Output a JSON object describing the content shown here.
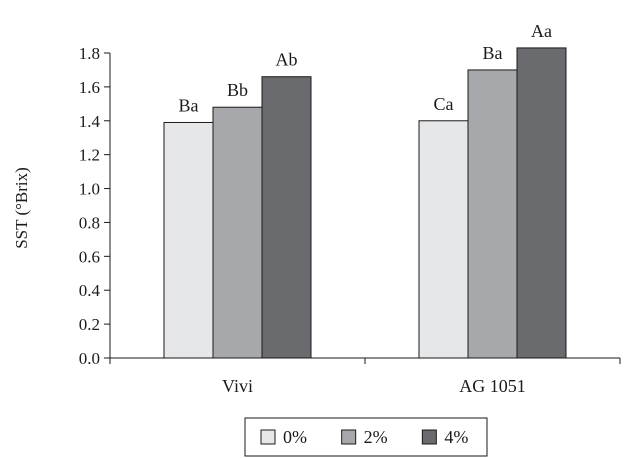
{
  "chart_data": {
    "type": "bar",
    "title": "",
    "xlabel": "",
    "ylabel": "SST (°Brix)",
    "ylim": [
      0,
      1.8
    ],
    "yticks": [
      "0.0",
      "0.2",
      "0.4",
      "0.6",
      "0.8",
      "1.0",
      "1.2",
      "1.4",
      "1.6",
      "1.8"
    ],
    "grid": false,
    "legend_position": "bottom-center",
    "categories": [
      "Vivi",
      "AG 1051"
    ],
    "series": [
      {
        "name": "0%",
        "color": "#e6e7e9",
        "values": [
          1.39,
          1.4
        ],
        "labels": [
          "Ba",
          "Ca"
        ]
      },
      {
        "name": "2%",
        "color": "#a7a8ab",
        "values": [
          1.48,
          1.7
        ],
        "labels": [
          "Bb",
          "Ba"
        ]
      },
      {
        "name": "4%",
        "color": "#6a6b6e",
        "values": [
          1.66,
          1.83
        ],
        "labels": [
          "Ab",
          "Aa"
        ]
      }
    ]
  }
}
